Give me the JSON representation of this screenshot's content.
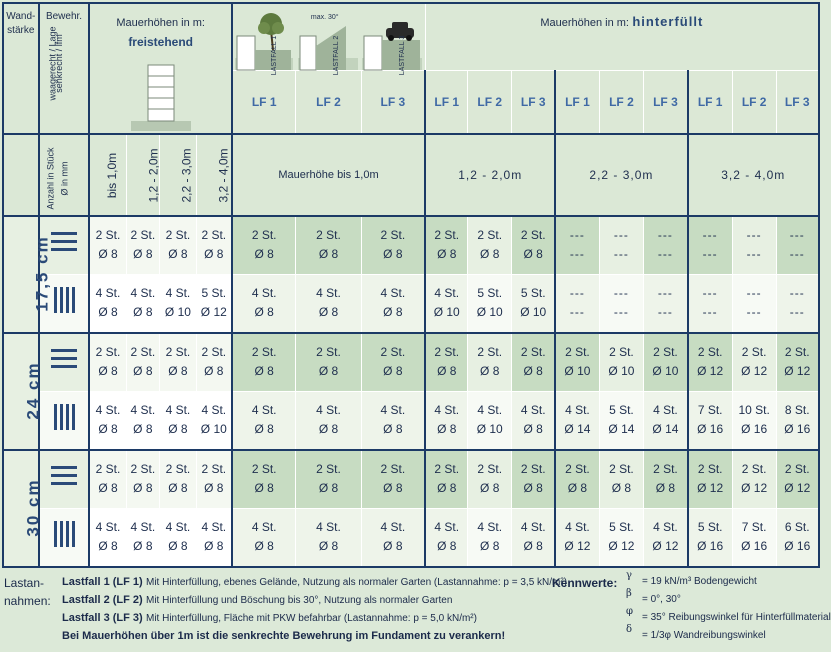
{
  "header": {
    "wand": "Wand-",
    "staerke": "stärke",
    "bewehr": "Bewehr.",
    "waagerecht": "waagerecht / Lage",
    "senkrecht": "senkrecht / lfm",
    "anzahl": "Anzahl in Stück",
    "durchmesser": "Ø in mm",
    "freistehend_prefix": "Mauerhöhen in m:",
    "freistehend_word": "freistehend",
    "hinterfuellt_prefix": "Mauerhöhen in m:",
    "hinterfuellt_word": "hinterfüllt",
    "max30": "max. 30°",
    "lastfall_img": [
      "LASTFALL 1",
      "LASTFALL 2",
      "LASTFALL 3"
    ],
    "lf_labels": [
      "LF 1",
      "LF 2",
      "LF 3"
    ],
    "free_heights": [
      "bis 1,0m",
      "1,2 - 2,0m",
      "2,2 - 3,0m",
      "3,2 - 4,0m"
    ],
    "group_heights": [
      "Mauerhöhe bis 1,0m",
      "1,2 - 2,0m",
      "2,2 - 3,0m",
      "3,2 - 4,0m"
    ]
  },
  "rows": [
    {
      "thickness": "17,5 cm",
      "h": [
        [
          "2 St.",
          "Ø 8"
        ],
        [
          "2 St.",
          "Ø 8"
        ],
        [
          "2 St.",
          "Ø 8"
        ],
        [
          "2 St.",
          "Ø 8"
        ],
        [
          "2 St.",
          "Ø 8"
        ],
        [
          "2 St.",
          "Ø 8"
        ],
        [
          "2 St.",
          "Ø 8"
        ],
        [
          "2 St.",
          "Ø 8"
        ],
        [
          "2 St.",
          "Ø 8"
        ],
        [
          "2 St.",
          "Ø 8"
        ],
        [
          "---",
          "---"
        ],
        [
          "---",
          "---"
        ],
        [
          "---",
          "---"
        ],
        [
          "---",
          "---"
        ],
        [
          "---",
          "---"
        ],
        [
          "---",
          "---"
        ]
      ],
      "v": [
        [
          "4 St.",
          "Ø 8"
        ],
        [
          "4 St.",
          "Ø 8"
        ],
        [
          "4 St.",
          "Ø 10"
        ],
        [
          "5 St.",
          "Ø 12"
        ],
        [
          "4 St.",
          "Ø 8"
        ],
        [
          "4 St.",
          "Ø 8"
        ],
        [
          "4 St.",
          "Ø 8"
        ],
        [
          "4 St.",
          "Ø 10"
        ],
        [
          "5 St.",
          "Ø 10"
        ],
        [
          "5 St.",
          "Ø 10"
        ],
        [
          "---",
          "---"
        ],
        [
          "---",
          "---"
        ],
        [
          "---",
          "---"
        ],
        [
          "---",
          "---"
        ],
        [
          "---",
          "---"
        ],
        [
          "---",
          "---"
        ]
      ]
    },
    {
      "thickness": "24 cm",
      "h": [
        [
          "2 St.",
          "Ø 8"
        ],
        [
          "2 St.",
          "Ø 8"
        ],
        [
          "2 St.",
          "Ø 8"
        ],
        [
          "2 St.",
          "Ø 8"
        ],
        [
          "2 St.",
          "Ø 8"
        ],
        [
          "2 St.",
          "Ø 8"
        ],
        [
          "2 St.",
          "Ø 8"
        ],
        [
          "2 St.",
          "Ø 8"
        ],
        [
          "2 St.",
          "Ø 8"
        ],
        [
          "2 St.",
          "Ø 8"
        ],
        [
          "2 St.",
          "Ø 10"
        ],
        [
          "2 St.",
          "Ø 10"
        ],
        [
          "2 St.",
          "Ø 10"
        ],
        [
          "2 St.",
          "Ø 12"
        ],
        [
          "2 St.",
          "Ø 12"
        ],
        [
          "2 St.",
          "Ø 12"
        ]
      ],
      "v": [
        [
          "4 St.",
          "Ø 8"
        ],
        [
          "4 St.",
          "Ø 8"
        ],
        [
          "4 St.",
          "Ø 8"
        ],
        [
          "4 St.",
          "Ø 10"
        ],
        [
          "4 St.",
          "Ø 8"
        ],
        [
          "4 St.",
          "Ø 8"
        ],
        [
          "4 St.",
          "Ø 8"
        ],
        [
          "4 St.",
          "Ø 8"
        ],
        [
          "4 St.",
          "Ø 10"
        ],
        [
          "4 St.",
          "Ø 8"
        ],
        [
          "4 St.",
          "Ø 14"
        ],
        [
          "5 St.",
          "Ø 14"
        ],
        [
          "4 St.",
          "Ø 14"
        ],
        [
          "7 St.",
          "Ø 16"
        ],
        [
          "10 St.",
          "Ø 16"
        ],
        [
          "8 St.",
          "Ø 16"
        ]
      ]
    },
    {
      "thickness": "30 cm",
      "h": [
        [
          "2 St.",
          "Ø 8"
        ],
        [
          "2 St.",
          "Ø 8"
        ],
        [
          "2 St.",
          "Ø 8"
        ],
        [
          "2 St.",
          "Ø 8"
        ],
        [
          "2 St.",
          "Ø 8"
        ],
        [
          "2 St.",
          "Ø 8"
        ],
        [
          "2 St.",
          "Ø 8"
        ],
        [
          "2 St.",
          "Ø 8"
        ],
        [
          "2 St.",
          "Ø 8"
        ],
        [
          "2 St.",
          "Ø 8"
        ],
        [
          "2 St.",
          "Ø 8"
        ],
        [
          "2 St.",
          "Ø 8"
        ],
        [
          "2 St.",
          "Ø 8"
        ],
        [
          "2 St.",
          "Ø 12"
        ],
        [
          "2 St.",
          "Ø 12"
        ],
        [
          "2 St.",
          "Ø 12"
        ]
      ],
      "v": [
        [
          "4 St.",
          "Ø 8"
        ],
        [
          "4 St.",
          "Ø 8"
        ],
        [
          "4 St.",
          "Ø 8"
        ],
        [
          "4 St.",
          "Ø 8"
        ],
        [
          "4 St.",
          "Ø 8"
        ],
        [
          "4 St.",
          "Ø 8"
        ],
        [
          "4 St.",
          "Ø 8"
        ],
        [
          "4 St.",
          "Ø 8"
        ],
        [
          "4 St.",
          "Ø 8"
        ],
        [
          "4 St.",
          "Ø 8"
        ],
        [
          "4 St.",
          "Ø 12"
        ],
        [
          "5 St.",
          "Ø 12"
        ],
        [
          "4 St.",
          "Ø 12"
        ],
        [
          "5 St.",
          "Ø 16"
        ],
        [
          "7 St.",
          "Ø 16"
        ],
        [
          "6 St.",
          "Ø 16"
        ]
      ]
    }
  ],
  "legend": {
    "title1": "Lastan-",
    "title2": "nahmen:",
    "lf1_label": "Lastfall 1 (LF 1)",
    "lf1_text": "Mit Hinterfüllung, ebenes Gelände, Nutzung als normaler Garten  (Lastannahme: p = 3,5 kN/m²)",
    "lf2_label": "Lastfall 2 (LF 2)",
    "lf2_text": "Mit Hinterfüllung und Böschung bis 30°, Nutzung als normaler Garten",
    "lf3_label": "Lastfall 3 (LF 3)",
    "lf3_text": "Mit Hinterfüllung, Fläche mit PKW befahrbar  (Lastannahme: p = 5,0 kN/m²)",
    "note": "Bei Mauerhöhen über 1m ist die senkrechte Bewehrung im Fundament zu verankern!",
    "kennwerte": "Kennwerte:",
    "k1_sym": "γ",
    "k1_text": "= 19 kN/m³ Bodengewicht",
    "k2_sym": "β",
    "k2_text": "=  0°, 30°",
    "k3_sym": "φ",
    "k3_text": "= 35° Reibungswinkel für Hinterfüllmaterial",
    "k4_sym": "δ",
    "k4_text": "= 1/3φ  Wandreibungswinkel"
  }
}
